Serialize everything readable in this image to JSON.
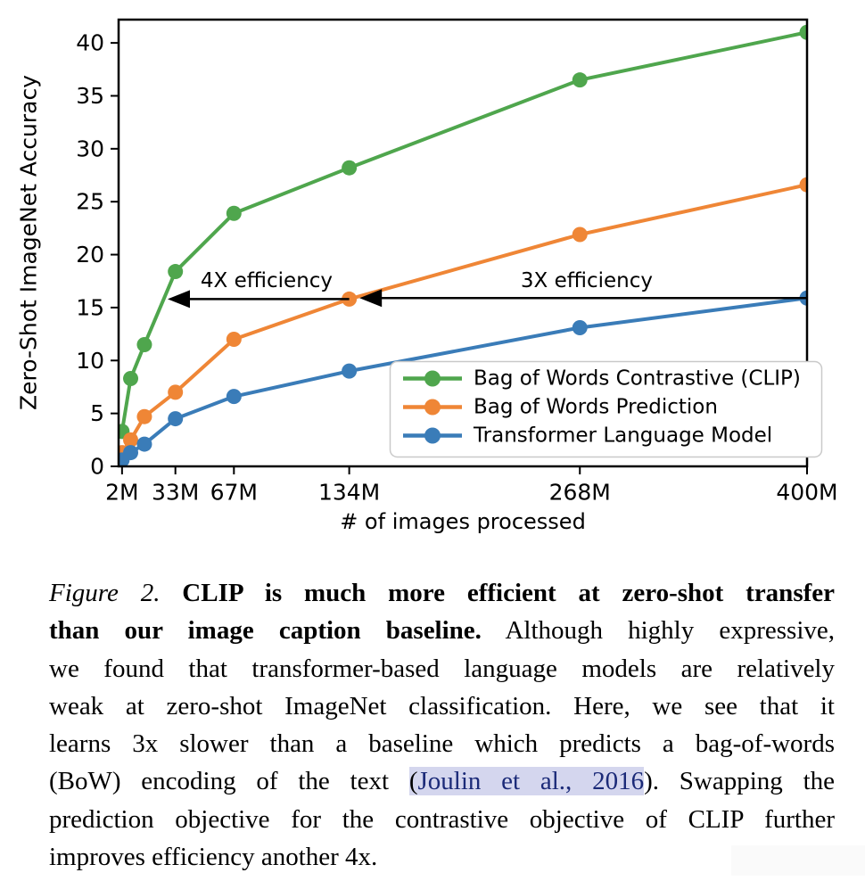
{
  "chart_data": {
    "type": "line",
    "title": "",
    "xlabel": "# of images processed",
    "ylabel": "Zero-Shot ImageNet Accuracy",
    "x_unit": "millions of images",
    "x": [
      2,
      7,
      15,
      33,
      67,
      134,
      268,
      400
    ],
    "xtick_values": [
      2,
      33,
      67,
      134,
      268,
      400
    ],
    "xtick_labels": [
      "2M",
      "33M",
      "67M",
      "134M",
      "268M",
      "400M"
    ],
    "yticks": [
      0,
      5,
      10,
      15,
      20,
      25,
      30,
      35,
      40
    ],
    "xlim": [
      0,
      400
    ],
    "ylim": [
      0,
      42.2
    ],
    "grid": false,
    "legend_position": "inside lower right",
    "series": [
      {
        "name": "Bag of Words Contrastive (CLIP)",
        "color": "#4fa64d",
        "values": [
          3.3,
          8.3,
          11.5,
          18.4,
          23.9,
          28.2,
          36.5,
          41.0
        ]
      },
      {
        "name": "Bag of Words Prediction",
        "color": "#ef8636",
        "values": [
          1.3,
          2.5,
          4.7,
          7.0,
          12.0,
          15.8,
          21.9,
          26.6
        ]
      },
      {
        "name": "Transformer Language Model",
        "color": "#3a7cb8",
        "values": [
          0.6,
          1.3,
          2.1,
          4.5,
          6.6,
          9.0,
          13.1,
          15.9
        ]
      }
    ],
    "annotations": [
      {
        "text": "4X efficiency",
        "arrow_y": 15.8,
        "arrow_tail_x": 134,
        "arrow_tip_x": 28.5,
        "label_x": 86,
        "label_y": 17.5
      },
      {
        "text": "3X efficiency",
        "arrow_y": 15.9,
        "arrow_tail_x": 400,
        "arrow_tip_x": 140,
        "label_x": 272,
        "label_y": 17.5
      }
    ],
    "arrow_color": "#000000"
  },
  "caption": {
    "figure_label": "Figure 2.",
    "cite_link_color": "#1b2a78",
    "cite_highlight_color": "#d4d6ee",
    "lines": [
      [
        {
          "text": "Figure 2.",
          "style": "italic"
        },
        {
          "text": " CLIP is much more efficient at zero-shot transfer",
          "style": "bold"
        }
      ],
      [
        {
          "text": "than our image caption baseline.",
          "style": "bold"
        },
        {
          "text": "  Although highly expressive,",
          "style": "normal"
        }
      ],
      [
        {
          "text": "we found that transformer-based language models are relatively",
          "style": "normal"
        }
      ],
      [
        {
          "text": "weak at zero-shot ImageNet classification.  Here, we see that it",
          "style": "normal"
        }
      ],
      [
        {
          "text": "learns 3x slower than a baseline which predicts a bag-of-words",
          "style": "normal"
        }
      ],
      [
        {
          "text": "(BoW) encoding of the text ",
          "style": "normal"
        },
        {
          "text": "(",
          "style": "cite-paren"
        },
        {
          "text": "Joulin et al., 2016",
          "style": "cite-link"
        },
        {
          "text": ").  Swapping the",
          "style": "normal"
        }
      ],
      [
        {
          "text": "prediction objective for the contrastive objective of CLIP further",
          "style": "normal"
        }
      ],
      [
        {
          "text": "improves efficiency another 4x.",
          "style": "normal"
        }
      ]
    ]
  }
}
